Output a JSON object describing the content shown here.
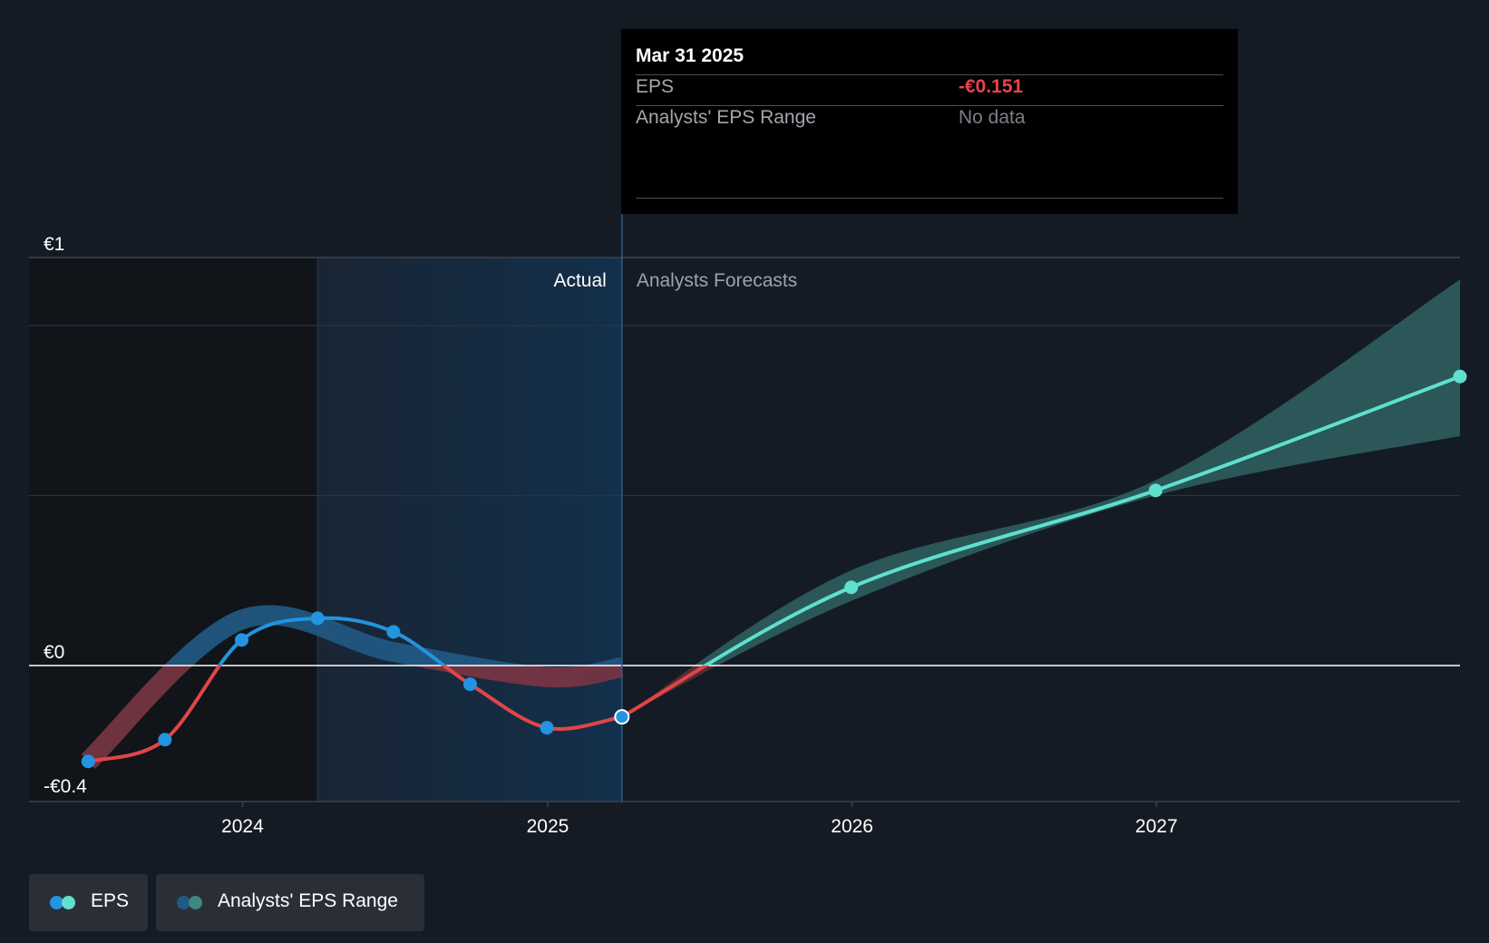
{
  "tooltip": {
    "date": "Mar 31 2025",
    "eps_label": "EPS",
    "eps_value": "-€0.151",
    "range_label": "Analysts' EPS Range",
    "range_value": "No data"
  },
  "legend": {
    "eps_label": "EPS",
    "range_label": "Analysts' EPS Range"
  },
  "colors": {
    "background": "#151b24",
    "eps_positive_actual": "#2394df",
    "eps_negative": "#e04646",
    "eps_forecast": "#5fe0cf",
    "range_actual": "#215a85",
    "range_forecast": "#2e5e5e",
    "tooltip_negative": "#e9424d"
  },
  "chart_data": {
    "type": "line",
    "y_ticks": [
      {
        "value": 1,
        "label": "€1"
      },
      {
        "value": 0,
        "label": "€0"
      },
      {
        "value": -0.4,
        "label": "-€0.4"
      }
    ],
    "x_ticks": [
      {
        "date": "2024-01-01",
        "label": "2024"
      },
      {
        "date": "2025-01-01",
        "label": "2025"
      },
      {
        "date": "2026-01-01",
        "label": "2026"
      },
      {
        "date": "2027-01-01",
        "label": "2027"
      }
    ],
    "ylim": [
      -0.4,
      1.2
    ],
    "xlim": [
      "2023-04-20",
      "2027-12-31"
    ],
    "section_labels": {
      "actual": "Actual",
      "forecast": "Analysts Forecasts"
    },
    "highlight_start": "2024-03-31",
    "divider_date": "2025-03-31",
    "series": [
      {
        "name": "EPS",
        "kind": "actual",
        "points": [
          {
            "date": "2023-06-30",
            "value": -0.282
          },
          {
            "date": "2023-09-30",
            "value": -0.218
          },
          {
            "date": "2023-12-31",
            "value": 0.075
          },
          {
            "date": "2024-03-31",
            "value": 0.139
          },
          {
            "date": "2024-06-30",
            "value": 0.099
          },
          {
            "date": "2024-09-30",
            "value": -0.055
          },
          {
            "date": "2024-12-31",
            "value": -0.183
          },
          {
            "date": "2025-03-31",
            "value": -0.151
          }
        ]
      },
      {
        "name": "EPS",
        "kind": "forecast",
        "points": [
          {
            "date": "2025-03-31",
            "value": -0.151
          },
          {
            "date": "2025-12-31",
            "value": 0.23
          },
          {
            "date": "2026-12-31",
            "value": 0.515
          },
          {
            "date": "2027-12-31",
            "value": 0.85
          }
        ]
      },
      {
        "name": "Analysts' EPS Range",
        "kind": "range-actual",
        "points": [
          {
            "date": "2023-06-30",
            "value": -0.282
          },
          {
            "date": "2023-12-31",
            "value": 0.135
          },
          {
            "date": "2024-06-30",
            "value": 0.04
          },
          {
            "date": "2024-12-31",
            "value": -0.034
          },
          {
            "date": "2025-03-31",
            "value": -0.005
          }
        ]
      },
      {
        "name": "Analysts' EPS Range",
        "kind": "range-forecast",
        "low": [
          {
            "date": "2025-03-31",
            "value": -0.151
          },
          {
            "date": "2025-12-31",
            "value": 0.19
          },
          {
            "date": "2026-12-31",
            "value": 0.5
          },
          {
            "date": "2027-12-31",
            "value": 0.675
          }
        ],
        "high": [
          {
            "date": "2025-03-31",
            "value": -0.151
          },
          {
            "date": "2025-12-31",
            "value": 0.28
          },
          {
            "date": "2026-12-31",
            "value": 0.545
          },
          {
            "date": "2027-12-31",
            "value": 1.135
          }
        ]
      }
    ]
  }
}
